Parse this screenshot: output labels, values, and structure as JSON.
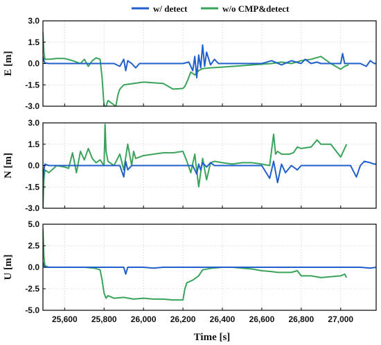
{
  "chart_data": {
    "type": "line",
    "xlabel": "Time [s]",
    "xlim": [
      25490,
      27180
    ],
    "xticks": [
      25600,
      25800,
      26000,
      26200,
      26400,
      26600,
      26800,
      27000
    ],
    "xtick_labels": [
      "25,600",
      "25,800",
      "26,000",
      "26,200",
      "26,400",
      "26,600",
      "26,800",
      "27,000"
    ],
    "legend": {
      "placement": "top-center",
      "entries": [
        {
          "label": "w/ detect",
          "color": "#1f5fcc"
        },
        {
          "label": "w/o CMP&detect",
          "color": "#3aa35a"
        }
      ]
    },
    "grid": true,
    "panels": [
      {
        "ylabel": "E [m]",
        "ylim": [
          -3.0,
          3.0
        ],
        "yticks": [
          3.0,
          1.5,
          0.0,
          -1.5,
          -3.0
        ],
        "ytick_labels": [
          "3.0",
          "1.5",
          "0.0",
          "-1.5",
          "-3.0"
        ],
        "series": [
          {
            "name": "w/ detect",
            "color": "#1f5fcc",
            "x": [
              25490,
              25495,
              25500,
              25520,
              25550,
              25580,
              25600,
              25650,
              25700,
              25750,
              25800,
              25850,
              25880,
              25900,
              25910,
              25920,
              25940,
              25960,
              25980,
              26000,
              26050,
              26100,
              26150,
              26200,
              26230,
              26250,
              26260,
              26270,
              26280,
              26290,
              26300,
              26310,
              26320,
              26340,
              26360,
              26380,
              26400,
              26450,
              26500,
              26550,
              26600,
              26650,
              26700,
              26750,
              26800,
              26820,
              26850,
              26880,
              26900,
              26950,
              27000,
              27010,
              27020,
              27050,
              27100,
              27130,
              27150,
              27170,
              27180
            ],
            "y": [
              0.5,
              0.2,
              0.05,
              0.0,
              0.0,
              0.0,
              0.0,
              0.0,
              0.0,
              0.0,
              0.0,
              0.0,
              -0.2,
              0.3,
              -0.5,
              0.2,
              0.0,
              -0.3,
              0.0,
              0.0,
              0.0,
              0.0,
              0.0,
              0.0,
              0.1,
              -0.5,
              0.5,
              -1.0,
              0.6,
              -0.3,
              1.3,
              -0.2,
              0.8,
              -0.1,
              0.3,
              0.0,
              0.0,
              0.0,
              0.0,
              0.0,
              0.0,
              0.2,
              -0.1,
              0.2,
              0.0,
              0.3,
              0.0,
              0.1,
              0.0,
              0.0,
              0.0,
              0.7,
              0.0,
              0.0,
              0.0,
              -0.2,
              0.2,
              0.0,
              0.0
            ]
          },
          {
            "name": "w/o CMP&detect",
            "color": "#3aa35a",
            "x": [
              25490,
              25495,
              25500,
              25520,
              25560,
              25600,
              25640,
              25660,
              25680,
              25700,
              25720,
              25740,
              25760,
              25780,
              25790,
              25800,
              25810,
              25820,
              25840,
              25860,
              25870,
              25880,
              25900,
              25950,
              26000,
              26050,
              26100,
              26150,
              26200,
              26210,
              26220,
              26240,
              26260,
              26280,
              26300,
              26340,
              26400,
              26450,
              26500,
              26550,
              26600,
              26650,
              26700,
              26750,
              26800,
              26850,
              26900,
              26950,
              27000,
              27010,
              27020,
              27040
            ],
            "y": [
              2.2,
              0.8,
              0.3,
              0.3,
              0.35,
              0.35,
              0.2,
              0.1,
              0.0,
              0.3,
              -0.2,
              0.2,
              0.4,
              0.3,
              -1.0,
              -3.0,
              -3.0,
              -2.6,
              -2.8,
              -3.0,
              -2.2,
              -1.8,
              -1.5,
              -1.4,
              -1.3,
              -1.35,
              -1.4,
              -1.8,
              -1.75,
              -1.6,
              -1.3,
              -0.6,
              -0.8,
              -0.5,
              -0.35,
              -0.3,
              -0.25,
              -0.2,
              -0.15,
              -0.1,
              -0.05,
              0.0,
              0.1,
              0.0,
              0.2,
              0.3,
              0.5,
              0.0,
              -0.4,
              -0.3,
              -0.2,
              -0.1
            ]
          }
        ]
      },
      {
        "ylabel": "N [m]",
        "ylim": [
          -3.0,
          3.0
        ],
        "yticks": [
          3.0,
          1.5,
          0.0,
          -1.5,
          -3.0
        ],
        "ytick_labels": [
          "3.0",
          "1.5",
          "0.0",
          "-1.5",
          "-3.0"
        ],
        "series": [
          {
            "name": "w/ detect",
            "color": "#1f5fcc",
            "x": [
              25490,
              25495,
              25500,
              25520,
              25560,
              25600,
              25650,
              25700,
              25750,
              25800,
              25850,
              25880,
              25900,
              25910,
              25920,
              25940,
              25960,
              26000,
              26050,
              26100,
              26150,
              26200,
              26250,
              26270,
              26280,
              26290,
              26300,
              26320,
              26340,
              26360,
              26400,
              26450,
              26500,
              26550,
              26600,
              26640,
              26660,
              26680,
              26700,
              26720,
              26750,
              26780,
              26800,
              26850,
              26900,
              26950,
              27000,
              27050,
              27080,
              27100,
              27120,
              27150,
              27170,
              27180
            ],
            "y": [
              -1.0,
              -0.3,
              0.1,
              0.0,
              0.0,
              0.0,
              0.0,
              0.0,
              0.0,
              0.0,
              0.0,
              0.0,
              -0.8,
              0.3,
              -0.3,
              0.0,
              0.0,
              0.0,
              0.0,
              0.0,
              0.0,
              0.0,
              0.0,
              -0.6,
              0.1,
              -0.3,
              0.2,
              -0.1,
              0.2,
              0.0,
              0.0,
              0.0,
              0.0,
              0.0,
              0.0,
              -0.9,
              0.3,
              -1.2,
              0.1,
              -0.5,
              0.0,
              -0.3,
              0.0,
              0.0,
              0.0,
              0.0,
              0.0,
              0.0,
              -0.8,
              0.0,
              0.3,
              0.2,
              0.1,
              0.1
            ]
          },
          {
            "name": "w/o CMP&detect",
            "color": "#3aa35a",
            "x": [
              25490,
              25495,
              25500,
              25520,
              25560,
              25600,
              25620,
              25640,
              25660,
              25680,
              25700,
              25720,
              25740,
              25760,
              25780,
              25800,
              25805,
              25810,
              25820,
              25850,
              25880,
              25900,
              25920,
              25940,
              25950,
              25960,
              25980,
              26000,
              26050,
              26100,
              26150,
              26200,
              26220,
              26240,
              26260,
              26280,
              26300,
              26320,
              26340,
              26360,
              26400,
              26450,
              26500,
              26550,
              26600,
              26640,
              26660,
              26670,
              26680,
              26700,
              26720,
              26740,
              26760,
              26780,
              26800,
              26850,
              26880,
              26900,
              26950,
              27000,
              27020,
              27030
            ],
            "y": [
              -3.0,
              -1.0,
              -0.3,
              -0.5,
              0.0,
              -0.1,
              -0.2,
              0.9,
              -0.5,
              1.0,
              0.4,
              1.2,
              0.5,
              0.2,
              0.4,
              0.0,
              2.9,
              1.0,
              0.3,
              0.0,
              0.8,
              -0.3,
              1.5,
              0.0,
              1.0,
              0.5,
              0.6,
              0.7,
              0.8,
              0.9,
              0.9,
              1.0,
              0.3,
              -0.5,
              0.8,
              -1.5,
              0.5,
              -1.0,
              0.2,
              0.3,
              0.2,
              0.1,
              0.2,
              0.2,
              0.1,
              0.0,
              2.2,
              0.8,
              1.0,
              0.8,
              0.8,
              0.8,
              0.9,
              1.3,
              1.2,
              1.3,
              1.8,
              1.5,
              1.5,
              0.6,
              1.2,
              1.5
            ]
          }
        ]
      },
      {
        "ylabel": "U [m]",
        "ylim": [
          -5.0,
          5.0
        ],
        "yticks": [
          5.0,
          2.5,
          0.0,
          -2.5,
          -5.0
        ],
        "ytick_labels": [
          "5.0",
          "2.5",
          "0.0",
          "-2.5",
          "-5.0"
        ],
        "series": [
          {
            "name": "w/ detect",
            "color": "#1f5fcc",
            "x": [
              25490,
              25495,
              25500,
              25520,
              25560,
              25600,
              25650,
              25700,
              25750,
              25800,
              25850,
              25880,
              25900,
              25910,
              25920,
              25950,
              26000,
              26050,
              26100,
              26150,
              26200,
              26250,
              26300,
              26350,
              26400,
              26450,
              26500,
              26550,
              26600,
              26650,
              26700,
              26750,
              26800,
              26850,
              26900,
              26950,
              27000,
              27050,
              27100,
              27150,
              27180
            ],
            "y": [
              0.6,
              0.2,
              0.0,
              0.0,
              0.0,
              0.0,
              0.0,
              0.0,
              0.0,
              0.0,
              0.0,
              0.0,
              0.0,
              -0.8,
              0.0,
              0.0,
              0.0,
              -0.1,
              0.0,
              0.0,
              0.0,
              0.0,
              0.0,
              0.0,
              0.0,
              0.0,
              0.0,
              0.0,
              0.0,
              0.0,
              0.0,
              0.0,
              0.0,
              0.0,
              0.0,
              0.0,
              0.0,
              0.0,
              0.0,
              -0.1,
              0.0
            ]
          },
          {
            "name": "w/o CMP&detect",
            "color": "#3aa35a",
            "x": [
              25490,
              25495,
              25500,
              25520,
              25560,
              25600,
              25650,
              25700,
              25750,
              25780,
              25790,
              25800,
              25810,
              25820,
              25850,
              25900,
              25950,
              26000,
              26050,
              26100,
              26150,
              26200,
              26210,
              26220,
              26250,
              26280,
              26300,
              26350,
              26400,
              26450,
              26500,
              26550,
              26600,
              26650,
              26680,
              26700,
              26750,
              26780,
              26800,
              26850,
              26900,
              26950,
              27000,
              27020,
              27030
            ],
            "y": [
              4.5,
              1.2,
              0.2,
              0.0,
              0.0,
              0.0,
              0.0,
              0.0,
              -0.1,
              -0.3,
              -1.5,
              -3.0,
              -3.6,
              -3.3,
              -3.6,
              -3.5,
              -3.7,
              -3.6,
              -3.7,
              -3.7,
              -3.8,
              -3.8,
              -2.5,
              -1.8,
              -1.5,
              -1.0,
              -0.3,
              -0.1,
              0.0,
              0.0,
              -0.1,
              -0.2,
              -0.4,
              -0.5,
              -0.6,
              -0.6,
              -0.6,
              -0.4,
              -1.0,
              -1.0,
              -1.2,
              -1.1,
              -1.0,
              -0.8,
              -1.2
            ]
          }
        ]
      }
    ]
  }
}
